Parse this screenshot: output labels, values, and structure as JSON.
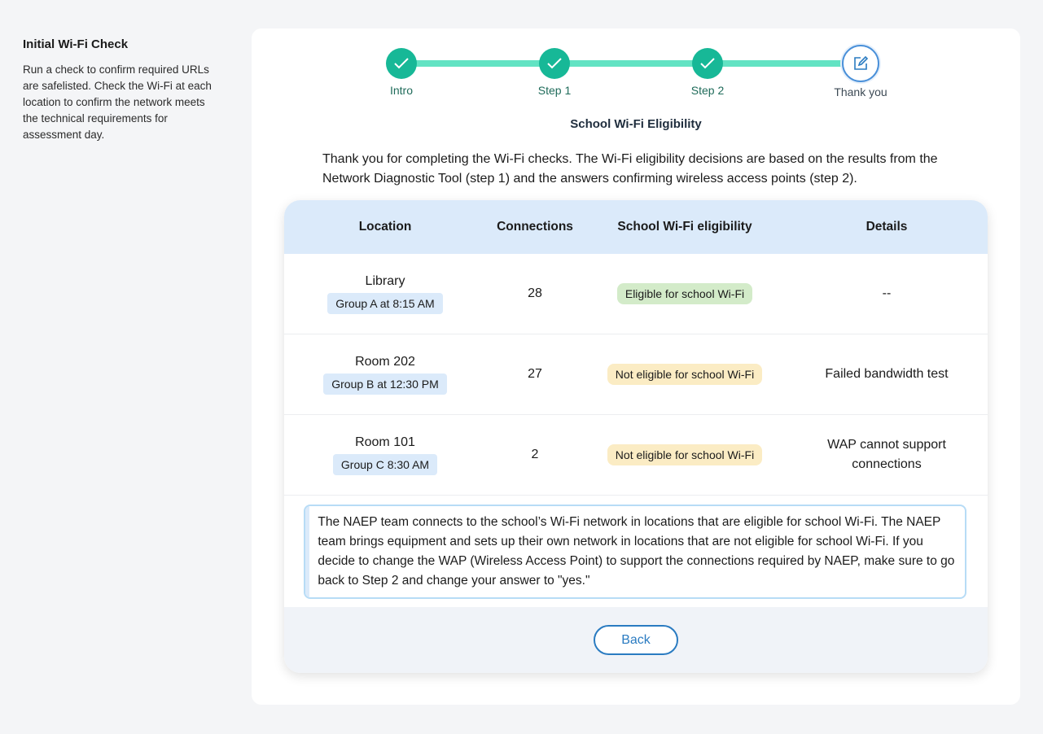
{
  "sidebar": {
    "title": "Initial Wi-Fi Check",
    "description": "Run a check to confirm required URLs are safelisted. Check the Wi-Fi at each location to confirm the network meets the technical requirements for assessment day."
  },
  "stepper": {
    "steps": [
      {
        "label": "Intro",
        "status": "complete",
        "icon": "check-icon"
      },
      {
        "label": "Step 1",
        "status": "complete",
        "icon": "check-icon"
      },
      {
        "label": "Step 2",
        "status": "complete",
        "icon": "check-icon"
      },
      {
        "label": "Thank you",
        "status": "current",
        "icon": "edit-icon"
      }
    ],
    "colors": {
      "complete": "#17b897",
      "track": "#62e3c3",
      "current": "#4a90d9"
    }
  },
  "main": {
    "title": "School Wi-Fi Eligibility",
    "intro": "Thank you for completing the Wi-Fi checks. The Wi-Fi eligibility decisions are based on the results from the Network Diagnostic Tool (step 1) and the answers confirming wireless access points (step 2)."
  },
  "table": {
    "headers": [
      "Location",
      "Connections",
      "School Wi-Fi eligibility",
      "Details"
    ],
    "rows": [
      {
        "location": "Library",
        "group": "Group A at 8:15 AM",
        "connections": "28",
        "eligibility": "Eligible for school Wi-Fi",
        "eligible": true,
        "details": "--"
      },
      {
        "location": "Room 202",
        "group": "Group B at 12:30 PM",
        "connections": "27",
        "eligibility": "Not eligible for school Wi-Fi",
        "eligible": false,
        "details": "Failed bandwidth test"
      },
      {
        "location": "Room 101",
        "group": "Group C  8:30 AM",
        "connections": "2",
        "eligibility": "Not eligible for school Wi-Fi",
        "eligible": false,
        "details": "WAP cannot support connections"
      }
    ]
  },
  "note": "The NAEP team connects to the school’s Wi-Fi network in locations that are eligible for school Wi-Fi. The NAEP team brings equipment and sets up their own network in locations that are not eligible for school Wi-Fi. If you decide to change the WAP (Wireless Access Point) to support the connections required by NAEP, make sure to go back to Step 2 and change your answer to \"yes.\"",
  "footer": {
    "back_label": "Back"
  }
}
